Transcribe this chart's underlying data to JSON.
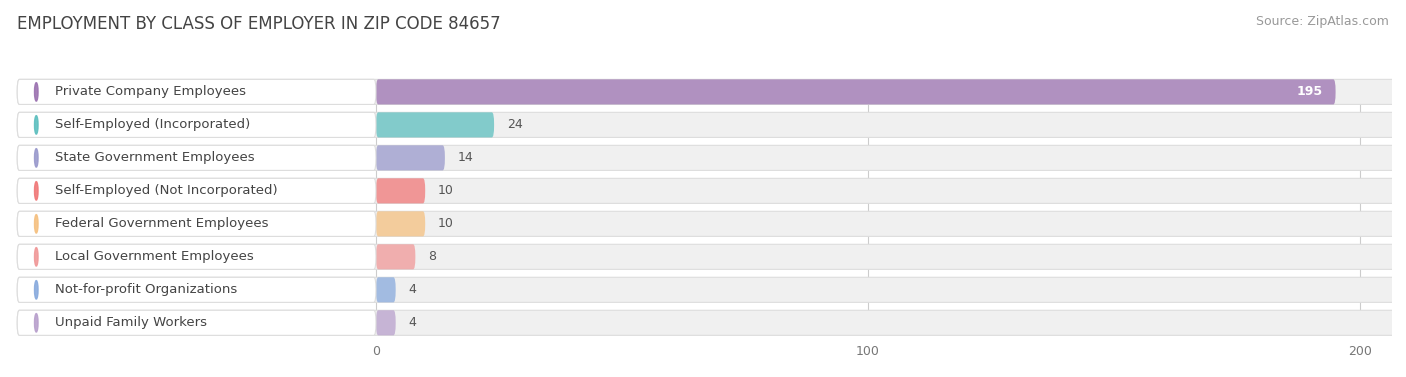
{
  "title": "EMPLOYMENT BY CLASS OF EMPLOYER IN ZIP CODE 84657",
  "source": "Source: ZipAtlas.com",
  "categories": [
    "Private Company Employees",
    "Self-Employed (Incorporated)",
    "State Government Employees",
    "Self-Employed (Not Incorporated)",
    "Federal Government Employees",
    "Local Government Employees",
    "Not-for-profit Organizations",
    "Unpaid Family Workers"
  ],
  "values": [
    195,
    24,
    14,
    10,
    10,
    8,
    4,
    4
  ],
  "bar_colors": [
    "#9b72b0",
    "#5dbfbf",
    "#9999cc",
    "#f07878",
    "#f5c080",
    "#f09898",
    "#88aadd",
    "#b8a0cc"
  ],
  "dot_colors": [
    "#9b72b0",
    "#5dbfbf",
    "#9999cc",
    "#f07878",
    "#f5c080",
    "#f09898",
    "#88aadd",
    "#b8a0cc"
  ],
  "row_bg_color": "#f0f0f0",
  "row_border_color": "#dddddd",
  "xlim_max": 215,
  "xticks": [
    0,
    100,
    200
  ],
  "title_fontsize": 12,
  "source_fontsize": 9,
  "label_fontsize": 9.5,
  "value_fontsize": 9
}
